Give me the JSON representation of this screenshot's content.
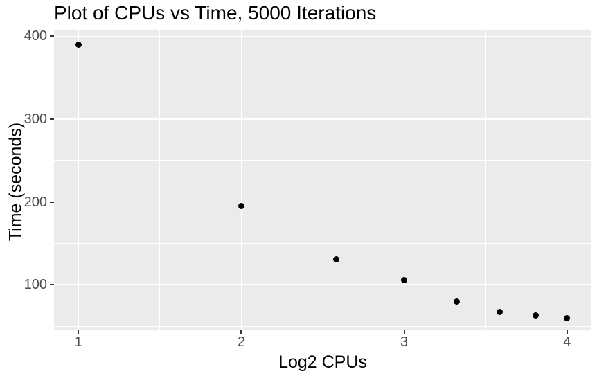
{
  "chart_data": {
    "type": "scatter",
    "title": "Plot of CPUs vs Time, 5000 Iterations",
    "xlabel": "Log2 CPUs",
    "ylabel": "Time (seconds)",
    "xlim": [
      0.85,
      4.15
    ],
    "ylim": [
      45,
      407
    ],
    "x_ticks": [
      1,
      2,
      3,
      4
    ],
    "y_ticks": [
      100,
      200,
      300,
      400
    ],
    "x_minor": [
      1.5,
      2.5,
      3.5
    ],
    "y_minor": [
      50,
      150,
      250,
      350
    ],
    "grid": "on",
    "legend": "none",
    "points": [
      {
        "x": 1.0,
        "y": 390
      },
      {
        "x": 2.0,
        "y": 195
      },
      {
        "x": 2.585,
        "y": 131
      },
      {
        "x": 3.0,
        "y": 106
      },
      {
        "x": 3.322,
        "y": 80
      },
      {
        "x": 3.585,
        "y": 67
      },
      {
        "x": 3.807,
        "y": 63
      },
      {
        "x": 4.0,
        "y": 60
      }
    ],
    "colors": {
      "panel_bg": "#EBEBEB",
      "grid": "#FFFFFF",
      "point": "#000000",
      "tick_label": "#4D4D4D",
      "tick_mark": "#333333",
      "title_text": "#000000",
      "page_bg": "#FFFFFF"
    }
  }
}
